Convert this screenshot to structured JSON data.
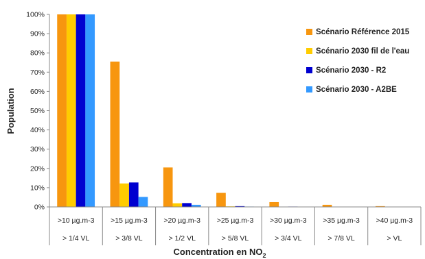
{
  "chart_data": {
    "type": "bar",
    "categories": [
      ">10 µg.m-3",
      ">15 µg.m-3",
      ">20 µg.m-3",
      ">25 µg.m-3",
      ">30 µg.m-3",
      ">35 µg.m-3",
      ">40 µg.m-3"
    ],
    "categories_secondary": [
      "> 1/4 VL",
      "> 3/8 VL",
      "> 1/2 VL",
      "> 5/8 VL",
      "> 3/4 VL",
      "> 7/8 VL",
      "> VL"
    ],
    "series": [
      {
        "name": "Scénario Référence 2015",
        "color": "#f7960f",
        "values": [
          100,
          75.5,
          20.5,
          7.3,
          2.5,
          1.1,
          0.4
        ]
      },
      {
        "name": "Scénario 2030 fil de l'eau",
        "color": "#ffcc00",
        "values": [
          100,
          12.2,
          1.9,
          0.3,
          0.1,
          0.1,
          0.1
        ]
      },
      {
        "name": "Scénario 2030 - R2",
        "color": "#0000d0",
        "values": [
          100,
          12.7,
          2.0,
          0.4,
          0.2,
          0.1,
          0.1
        ]
      },
      {
        "name": "Scénario 2030 - A2BE",
        "color": "#3399ff",
        "values": [
          100,
          5.2,
          1.1,
          0.2,
          0.1,
          0.1,
          0.1
        ]
      }
    ],
    "title": "",
    "xlabel": "Concentration en NO",
    "xlabel_subscript": "2",
    "ylabel": "Population",
    "ylim": [
      0,
      100
    ],
    "yticks": [
      "0%",
      "10%",
      "20%",
      "30%",
      "40%",
      "50%",
      "60%",
      "70%",
      "80%",
      "90%",
      "100%"
    ],
    "grid": false,
    "legend": "top-right"
  }
}
